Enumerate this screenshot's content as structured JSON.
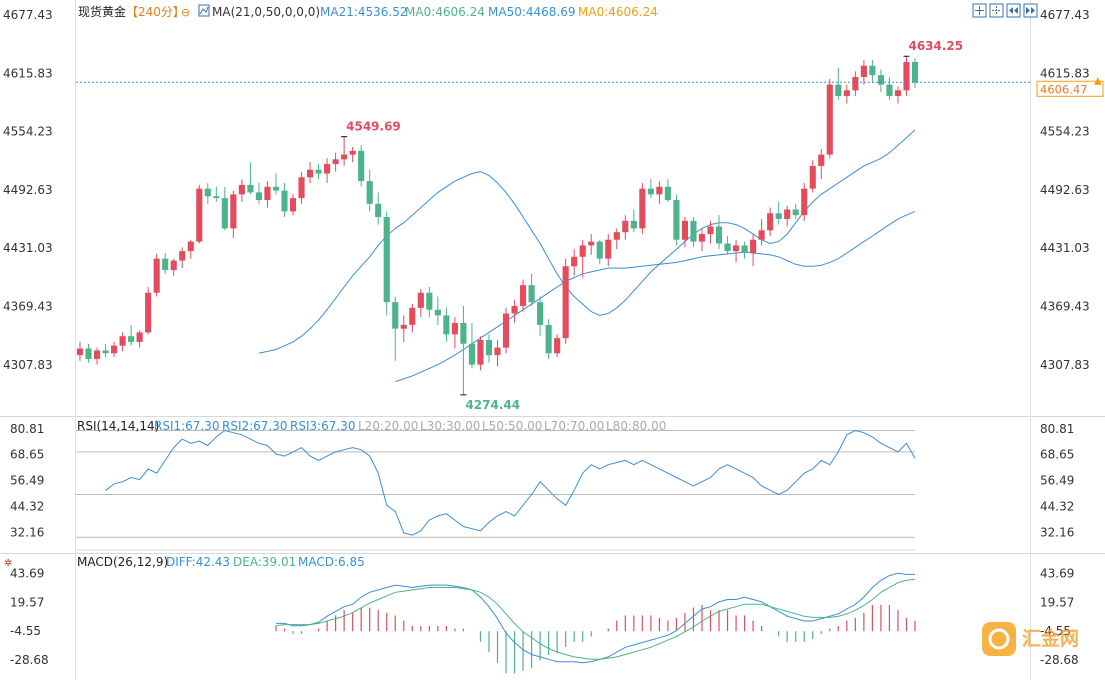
{
  "header": {
    "symbol": "现货黄金",
    "period": "【240分】",
    "ma_setting": "MA(21,0,50,0,0,0)",
    "ma21": "MA21:4536.52",
    "ma0a": "MA0:4606.24",
    "ma50": "MA50:4468.69",
    "ma0b": "MA0:4606.24"
  },
  "price_axis": {
    "ticks": [
      "4677.43",
      "4615.83",
      "4554.23",
      "4492.63",
      "4431.03",
      "4369.43",
      "4307.83"
    ],
    "current_price": "4606.47",
    "range": [
      4260,
      4685
    ]
  },
  "annotations": {
    "high1": "4549.69",
    "low1": "4274.44",
    "high2": "4634.25"
  },
  "rsi": {
    "title": "RSI(14,14,14)",
    "rsi1": "RSI1:67.30",
    "rsi2": "RSI2:67.30",
    "rsi3": "RSI3:67.30",
    "l20": "L20:20.00",
    "l30": "L30:30.00",
    "l50": "L50:50.00",
    "l70": "L70:70.00",
    "l80": "L80:80.00",
    "ticks": [
      "80.81",
      "68.65",
      "56.49",
      "44.32",
      "32.16"
    ]
  },
  "macd": {
    "title": "MACD(26,12,9)",
    "diff": "DIFF:42.43",
    "dea": "DEA:39.01",
    "macd": "MACD:6.85",
    "ticks": [
      "43.69",
      "19.57",
      "-4.55",
      "-28.68"
    ]
  },
  "colors": {
    "up": "#e24c5c",
    "down": "#4db38a",
    "ma21": "#3a8fd6",
    "ma50": "#3a8fd6",
    "rsi": "#3a8fd6",
    "diff": "#3a8fd6",
    "dea": "#4db38a",
    "price_line": "#3a8fd6",
    "accent": "#f39c12"
  },
  "watermark": "汇金网",
  "chart_data": {
    "type": "candlestick",
    "title": "现货黄金 240分",
    "candles": [
      [
        4318,
        4332,
        4312,
        4325
      ],
      [
        4325,
        4330,
        4310,
        4314
      ],
      [
        4314,
        4326,
        4308,
        4323
      ],
      [
        4323,
        4330,
        4316,
        4320
      ],
      [
        4320,
        4332,
        4316,
        4328
      ],
      [
        4328,
        4342,
        4322,
        4338
      ],
      [
        4338,
        4350,
        4328,
        4332
      ],
      [
        4332,
        4344,
        4326,
        4342
      ],
      [
        4342,
        4390,
        4340,
        4384
      ],
      [
        4384,
        4425,
        4380,
        4420
      ],
      [
        4420,
        4426,
        4404,
        4408
      ],
      [
        4408,
        4420,
        4402,
        4418
      ],
      [
        4418,
        4432,
        4410,
        4428
      ],
      [
        4428,
        4440,
        4420,
        4438
      ],
      [
        4438,
        4498,
        4436,
        4494
      ],
      [
        4494,
        4500,
        4478,
        4486
      ],
      [
        4486,
        4496,
        4480,
        4484
      ],
      [
        4484,
        4496,
        4450,
        4452
      ],
      [
        4452,
        4492,
        4442,
        4488
      ],
      [
        4488,
        4504,
        4480,
        4498
      ],
      [
        4498,
        4522,
        4488,
        4490
      ],
      [
        4490,
        4500,
        4478,
        4482
      ],
      [
        4482,
        4502,
        4474,
        4496
      ],
      [
        4496,
        4510,
        4488,
        4492
      ],
      [
        4492,
        4500,
        4464,
        4470
      ],
      [
        4470,
        4488,
        4466,
        4484
      ],
      [
        4484,
        4512,
        4478,
        4506
      ],
      [
        4506,
        4522,
        4500,
        4514
      ],
      [
        4514,
        4520,
        4504,
        4510
      ],
      [
        4510,
        4526,
        4500,
        4520
      ],
      [
        4520,
        4532,
        4512,
        4525
      ],
      [
        4525,
        4549,
        4518,
        4530
      ],
      [
        4530,
        4538,
        4522,
        4534
      ],
      [
        4534,
        4540,
        4496,
        4502
      ],
      [
        4502,
        4514,
        4470,
        4478
      ],
      [
        4478,
        4490,
        4456,
        4464
      ],
      [
        4464,
        4470,
        4360,
        4374
      ],
      [
        4374,
        4380,
        4312,
        4346
      ],
      [
        4346,
        4360,
        4332,
        4350
      ],
      [
        4350,
        4372,
        4342,
        4368
      ],
      [
        4368,
        4388,
        4358,
        4384
      ],
      [
        4384,
        4390,
        4358,
        4366
      ],
      [
        4366,
        4380,
        4350,
        4360
      ],
      [
        4360,
        4368,
        4332,
        4340
      ],
      [
        4340,
        4358,
        4325,
        4352
      ],
      [
        4352,
        4370,
        4276,
        4330
      ],
      [
        4330,
        4352,
        4304,
        4308
      ],
      [
        4308,
        4338,
        4302,
        4334
      ],
      [
        4334,
        4340,
        4310,
        4318
      ],
      [
        4318,
        4334,
        4306,
        4326
      ],
      [
        4326,
        4368,
        4320,
        4362
      ],
      [
        4362,
        4376,
        4352,
        4370
      ],
      [
        4370,
        4398,
        4364,
        4392
      ],
      [
        4392,
        4404,
        4370,
        4374
      ],
      [
        4374,
        4380,
        4338,
        4350
      ],
      [
        4350,
        4356,
        4314,
        4320
      ],
      [
        4320,
        4340,
        4316,
        4336
      ],
      [
        4336,
        4420,
        4330,
        4412
      ],
      [
        4412,
        4430,
        4402,
        4422
      ],
      [
        4422,
        4440,
        4400,
        4434
      ],
      [
        4434,
        4446,
        4424,
        4438
      ],
      [
        4438,
        4440,
        4414,
        4420
      ],
      [
        4420,
        4446,
        4412,
        4440
      ],
      [
        4440,
        4452,
        4430,
        4448
      ],
      [
        4448,
        4466,
        4440,
        4460
      ],
      [
        4460,
        4472,
        4448,
        4452
      ],
      [
        4452,
        4500,
        4446,
        4494
      ],
      [
        4494,
        4504,
        4484,
        4488
      ],
      [
        4488,
        4502,
        4478,
        4496
      ],
      [
        4496,
        4504,
        4480,
        4482
      ],
      [
        4482,
        4488,
        4434,
        4440
      ],
      [
        4440,
        4464,
        4432,
        4460
      ],
      [
        4460,
        4464,
        4432,
        4438
      ],
      [
        4438,
        4452,
        4428,
        4446
      ],
      [
        4446,
        4460,
        4436,
        4454
      ],
      [
        4454,
        4466,
        4430,
        4436
      ],
      [
        4436,
        4444,
        4424,
        4428
      ],
      [
        4428,
        4440,
        4416,
        4434
      ],
      [
        4434,
        4438,
        4420,
        4426
      ],
      [
        4426,
        4446,
        4412,
        4440
      ],
      [
        4440,
        4462,
        4434,
        4450
      ],
      [
        4450,
        4474,
        4444,
        4468
      ],
      [
        4468,
        4480,
        4456,
        4462
      ],
      [
        4462,
        4476,
        4454,
        4472
      ],
      [
        4472,
        4478,
        4462,
        4466
      ],
      [
        4466,
        4500,
        4460,
        4494
      ],
      [
        4494,
        4524,
        4490,
        4518
      ],
      [
        4518,
        4536,
        4504,
        4530
      ],
      [
        4530,
        4610,
        4526,
        4604
      ],
      [
        4604,
        4622,
        4588,
        4592
      ],
      [
        4592,
        4604,
        4584,
        4598
      ],
      [
        4598,
        4618,
        4592,
        4612
      ],
      [
        4612,
        4630,
        4604,
        4624
      ],
      [
        4624,
        4630,
        4606,
        4614
      ],
      [
        4614,
        4620,
        4596,
        4604
      ],
      [
        4604,
        4612,
        4588,
        4592
      ],
      [
        4592,
        4602,
        4584,
        4598
      ],
      [
        4598,
        4634,
        4592,
        4628
      ],
      [
        4628,
        4632,
        4600,
        4606
      ]
    ],
    "ma21": [
      4320,
      4322,
      4324,
      4328,
      4332,
      4338,
      4346,
      4355,
      4366,
      4378,
      4390,
      4402,
      4412,
      4422,
      4434,
      4444,
      4452,
      4458,
      4466,
      4474,
      4482,
      4490,
      4496,
      4502,
      4506,
      4510,
      4512,
      4508,
      4500,
      4490,
      4478,
      4464,
      4450,
      4436,
      4420,
      4404,
      4390,
      4380,
      4372,
      4364,
      4360,
      4362,
      4368,
      4376,
      4386,
      4396,
      4406,
      4414,
      4422,
      4430,
      4438,
      4446,
      4452,
      4456,
      4458,
      4458,
      4456,
      4452,
      4446,
      4440,
      4436,
      4438,
      4446,
      4458,
      4470,
      4480,
      4488,
      4494,
      4500,
      4506,
      4512,
      4518,
      4522,
      4526,
      4532,
      4540,
      4548,
      4556
    ],
    "ma50": [
      4290,
      4293,
      4296,
      4300,
      4304,
      4308,
      4313,
      4318,
      4324,
      4330,
      4336,
      4342,
      4348,
      4354,
      4360,
      4366,
      4372,
      4378,
      4384,
      4390,
      4396,
      4400,
      4404,
      4406,
      4408,
      4410,
      4410,
      4410,
      4411,
      4412,
      4413,
      4414,
      4415,
      4416,
      4418,
      4420,
      4422,
      4423,
      4424,
      4425,
      4426,
      4427,
      4426,
      4425,
      4424,
      4422,
      4418,
      4414,
      4412,
      4412,
      4413,
      4416,
      4420,
      4426,
      4432,
      4438,
      4444,
      4450,
      4456,
      4462,
      4466,
      4470
    ],
    "rsi": [
      52,
      55,
      56,
      58,
      57,
      62,
      60,
      66,
      72,
      76,
      74,
      75,
      73,
      77,
      80,
      79,
      78,
      76,
      74,
      73,
      69,
      68,
      70,
      72,
      68,
      66,
      68,
      70,
      71,
      72,
      71,
      68,
      60,
      45,
      42,
      32,
      31,
      33,
      38,
      40,
      41,
      38,
      35,
      34,
      33,
      37,
      40,
      42,
      40,
      45,
      50,
      56,
      52,
      48,
      45,
      52,
      60,
      64,
      62,
      64,
      65,
      66,
      64,
      66,
      64,
      62,
      60,
      58,
      56,
      54,
      56,
      58,
      62,
      64,
      62,
      60,
      58,
      54,
      52,
      50,
      52,
      56,
      60,
      62,
      66,
      64,
      70,
      78,
      80,
      79,
      77,
      74,
      72,
      70,
      74,
      67
    ],
    "macd_diff": [
      2,
      2,
      0,
      0,
      1,
      3,
      8,
      12,
      16,
      18,
      24,
      28,
      30,
      32,
      34,
      33,
      32,
      33,
      34,
      34,
      34,
      33,
      32,
      30,
      24,
      16,
      6,
      -6,
      -14,
      -20,
      -24,
      -26,
      -28,
      -30,
      -30,
      -30,
      -31,
      -30,
      -28,
      -26,
      -22,
      -18,
      -16,
      -14,
      -12,
      -10,
      -8,
      -4,
      2,
      8,
      14,
      16,
      20,
      22,
      22,
      24,
      22,
      20,
      16,
      12,
      8,
      6,
      4,
      4,
      6,
      8,
      10,
      14,
      18,
      24,
      32,
      38,
      42,
      44,
      43,
      43
    ],
    "macd_dea": [
      0,
      1,
      1,
      1,
      1,
      2,
      4,
      6,
      8,
      11,
      15,
      19,
      22,
      25,
      28,
      29,
      30,
      31,
      32,
      32,
      32,
      32,
      31,
      30,
      28,
      24,
      18,
      10,
      2,
      -5,
      -10,
      -15,
      -19,
      -22,
      -24,
      -26,
      -27,
      -28,
      -28,
      -27,
      -26,
      -24,
      -22,
      -20,
      -18,
      -15,
      -12,
      -9,
      -5,
      -1,
      4,
      8,
      12,
      14,
      16,
      18,
      18,
      18,
      16,
      14,
      12,
      10,
      8,
      7,
      7,
      7,
      8,
      10,
      13,
      17,
      22,
      28,
      32,
      36,
      38,
      39
    ]
  }
}
